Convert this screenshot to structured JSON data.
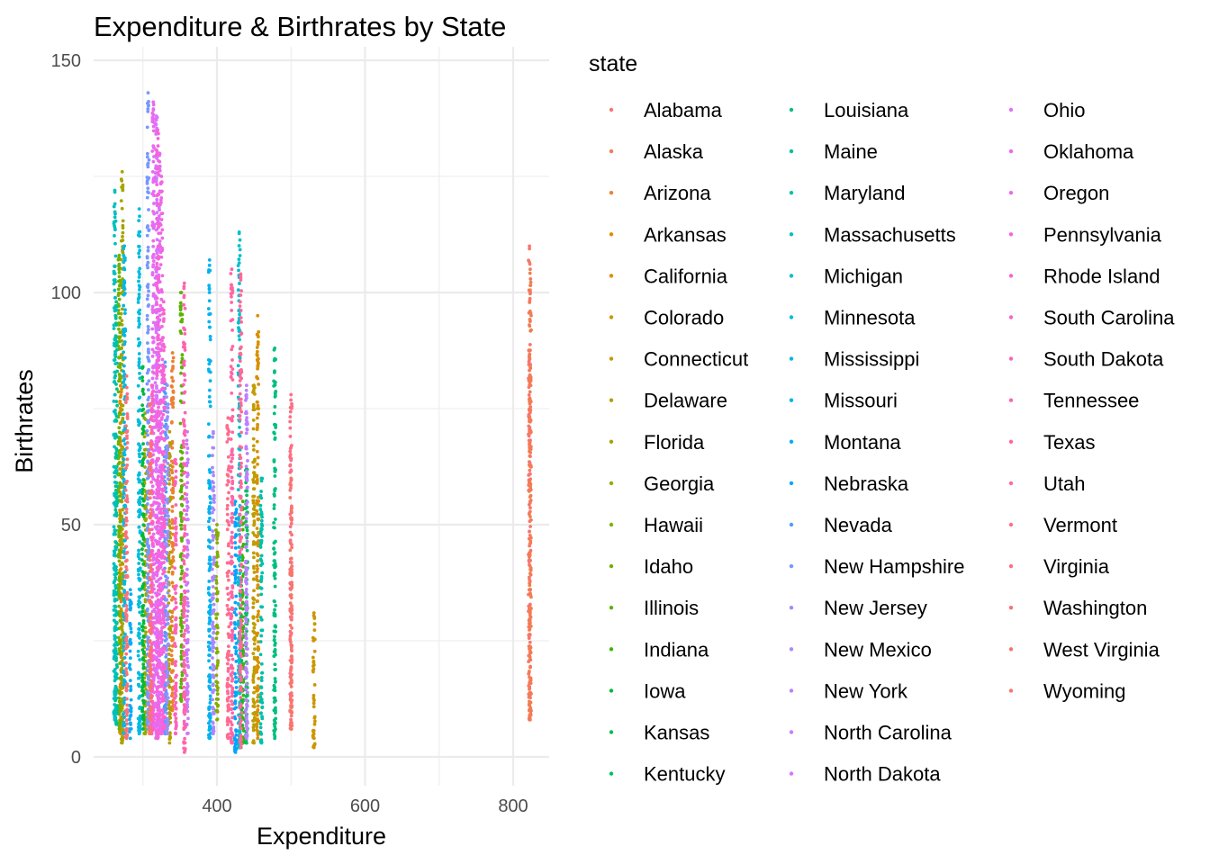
{
  "chart_data": {
    "type": "scatter",
    "title": "Expenditure & Birthrates by State",
    "xlabel": "Expenditure",
    "ylabel": "Birthrates",
    "xlim": [
      260,
      820
    ],
    "ylim": [
      0,
      150
    ],
    "x_ticks": [
      400,
      600,
      800
    ],
    "y_ticks": [
      0,
      50,
      100,
      150
    ],
    "grid": true,
    "legend_title": "state",
    "legend_position": "right",
    "series": [
      {
        "name": "Alabama",
        "color": "#F8766D",
        "x": 822,
        "ymin": 8,
        "ymax": 110
      },
      {
        "name": "Alaska",
        "color": "#F27D53",
        "x": 823,
        "ymin": 8,
        "ymax": 105
      },
      {
        "name": "Arizona",
        "color": "#EA8331",
        "x": 340,
        "ymin": 10,
        "ymax": 87
      },
      {
        "name": "Arkansas",
        "color": "#E18A00",
        "x": 270,
        "ymin": 5,
        "ymax": 82
      },
      {
        "name": "California",
        "color": "#D89000",
        "x": 455,
        "ymin": 4,
        "ymax": 95
      },
      {
        "name": "Colorado",
        "color": "#CD9600",
        "x": 531,
        "ymin": 2,
        "ymax": 31
      },
      {
        "name": "Connecticut",
        "color": "#C19C00",
        "x": 450,
        "ymin": 3,
        "ymax": 80
      },
      {
        "name": "Delaware",
        "color": "#B4A000",
        "x": 336,
        "ymin": 3,
        "ymax": 70
      },
      {
        "name": "Florida",
        "color": "#A6A400",
        "x": 272,
        "ymin": 3,
        "ymax": 126
      },
      {
        "name": "Georgia",
        "color": "#96A900",
        "x": 303,
        "ymin": 5,
        "ymax": 74
      },
      {
        "name": "Hawaii",
        "color": "#85AD00",
        "x": 400,
        "ymin": 8,
        "ymax": 50
      },
      {
        "name": "Idaho",
        "color": "#72B000",
        "x": 268,
        "ymin": 6,
        "ymax": 108
      },
      {
        "name": "Illinois",
        "color": "#5BB300",
        "x": 352,
        "ymin": 12,
        "ymax": 100
      },
      {
        "name": "Indiana",
        "color": "#3DB600",
        "x": 435,
        "ymin": 3,
        "ymax": 55
      },
      {
        "name": "Iowa",
        "color": "#00BA38",
        "x": 300,
        "ymin": 6,
        "ymax": 84
      },
      {
        "name": "Kansas",
        "color": "#00BC50",
        "x": 432,
        "ymin": 2,
        "ymax": 40
      },
      {
        "name": "Kentucky",
        "color": "#00BE67",
        "x": 440,
        "ymin": 3,
        "ymax": 62
      },
      {
        "name": "Louisiana",
        "color": "#00BF7D",
        "x": 478,
        "ymin": 4,
        "ymax": 88
      },
      {
        "name": "Maine",
        "color": "#00C094",
        "x": 264,
        "ymin": 7,
        "ymax": 98
      },
      {
        "name": "Maryland",
        "color": "#00C1A9",
        "x": 460,
        "ymin": 3,
        "ymax": 60
      },
      {
        "name": "Massachusetts",
        "color": "#00C0BE",
        "x": 262,
        "ymin": 8,
        "ymax": 122
      },
      {
        "name": "Michigan",
        "color": "#00BED0",
        "x": 430,
        "ymin": 2,
        "ymax": 113
      },
      {
        "name": "Minnesota",
        "color": "#00BCDF",
        "x": 295,
        "ymin": 5,
        "ymax": 118
      },
      {
        "name": "Mississippi",
        "color": "#00B8E5",
        "x": 275,
        "ymin": 5,
        "ymax": 110
      },
      {
        "name": "Missouri",
        "color": "#00B3EE",
        "x": 390,
        "ymin": 4,
        "ymax": 107
      },
      {
        "name": "Montana",
        "color": "#00ADF6",
        "x": 283,
        "ymin": 4,
        "ymax": 36
      },
      {
        "name": "Nebraska",
        "color": "#00A5FF",
        "x": 425,
        "ymin": 1,
        "ymax": 55
      },
      {
        "name": "Nevada",
        "color": "#4C9EFF",
        "x": 330,
        "ymin": 5,
        "ymax": 85
      },
      {
        "name": "New Hampshire",
        "color": "#7997FF",
        "x": 307,
        "ymin": 6,
        "ymax": 143
      },
      {
        "name": "New Jersey",
        "color": "#9590FF",
        "x": 333,
        "ymin": 5,
        "ymax": 80
      },
      {
        "name": "New Mexico",
        "color": "#AA88FF",
        "x": 395,
        "ymin": 5,
        "ymax": 70
      },
      {
        "name": "New York",
        "color": "#BB81FF",
        "x": 440,
        "ymin": 4,
        "ymax": 80
      },
      {
        "name": "North Carolina",
        "color": "#C97BFF",
        "x": 360,
        "ymin": 5,
        "ymax": 70
      },
      {
        "name": "North Dakota",
        "color": "#D675FF",
        "x": 318,
        "ymin": 4,
        "ymax": 138
      },
      {
        "name": "Ohio",
        "color": "#E16EF8",
        "x": 322,
        "ymin": 5,
        "ymax": 130
      },
      {
        "name": "Oklahoma",
        "color": "#E96AF0",
        "x": 314,
        "ymin": 6,
        "ymax": 141
      },
      {
        "name": "Oregon",
        "color": "#F066E6",
        "x": 325,
        "ymin": 5,
        "ymax": 125
      },
      {
        "name": "Pennsylvania",
        "color": "#F564DB",
        "x": 320,
        "ymin": 4,
        "ymax": 135
      },
      {
        "name": "Rhode Island",
        "color": "#FA62D2",
        "x": 328,
        "ymin": 6,
        "ymax": 98
      },
      {
        "name": "South Carolina",
        "color": "#FC61C6",
        "x": 312,
        "ymin": 5,
        "ymax": 80
      },
      {
        "name": "South Dakota",
        "color": "#FE62BA",
        "x": 344,
        "ymin": 5,
        "ymax": 64
      },
      {
        "name": "Tennessee",
        "color": "#FF64AF",
        "x": 356,
        "ymin": 1,
        "ymax": 102
      },
      {
        "name": "Texas",
        "color": "#FF66A4",
        "x": 420,
        "ymin": 3,
        "ymax": 105
      },
      {
        "name": "Utah",
        "color": "#FF6A98",
        "x": 432,
        "ymin": 2,
        "ymax": 104
      },
      {
        "name": "Vermont",
        "color": "#FF6C8E",
        "x": 415,
        "ymin": 4,
        "ymax": 73
      },
      {
        "name": "Virginia",
        "color": "#FE6E83",
        "x": 500,
        "ymin": 8,
        "ymax": 78
      },
      {
        "name": "Washington",
        "color": "#FC7079",
        "x": 278,
        "ymin": 4,
        "ymax": 82
      },
      {
        "name": "West Virginia",
        "color": "#FA7370",
        "x": 310,
        "ymin": 5,
        "ymax": 76
      },
      {
        "name": "Wyoming",
        "color": "#F7766B",
        "x": 500,
        "ymin": 6,
        "ymax": 60
      }
    ]
  }
}
